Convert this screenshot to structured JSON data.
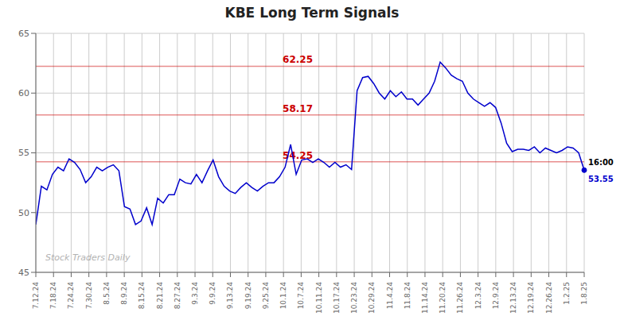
{
  "chart_data": {
    "type": "line",
    "title": "KBE Long Term Signals",
    "watermark": "Stock Traders Daily",
    "color": "#0000cc",
    "grid": true,
    "xlim": [
      0,
      31
    ],
    "xticks": [
      {
        "value": 0,
        "label": "7.12.24"
      },
      {
        "value": 1,
        "label": "7.18.24"
      },
      {
        "value": 2,
        "label": "7.24.24"
      },
      {
        "value": 3,
        "label": "7.30.24"
      },
      {
        "value": 4,
        "label": "8.5.24"
      },
      {
        "value": 5,
        "label": "8.9.24"
      },
      {
        "value": 6,
        "label": "8.15.24"
      },
      {
        "value": 7,
        "label": "8.21.24"
      },
      {
        "value": 8,
        "label": "8.27.24"
      },
      {
        "value": 9,
        "label": "9.3.24"
      },
      {
        "value": 10,
        "label": "9.9.24"
      },
      {
        "value": 11,
        "label": "9.13.24"
      },
      {
        "value": 12,
        "label": "9.19.24"
      },
      {
        "value": 13,
        "label": "9.25.24"
      },
      {
        "value": 14,
        "label": "10.1.24"
      },
      {
        "value": 15,
        "label": "10.7.24"
      },
      {
        "value": 16,
        "label": "10.11.24"
      },
      {
        "value": 17,
        "label": "10.17.24"
      },
      {
        "value": 18,
        "label": "10.23.24"
      },
      {
        "value": 19,
        "label": "10.29.24"
      },
      {
        "value": 20,
        "label": "11.4.24"
      },
      {
        "value": 21,
        "label": "11.8.24"
      },
      {
        "value": 22,
        "label": "11.14.24"
      },
      {
        "value": 23,
        "label": "11.20.24"
      },
      {
        "value": 24,
        "label": "11.26.24"
      },
      {
        "value": 25,
        "label": "12.3.24"
      },
      {
        "value": 26,
        "label": "12.9.24"
      },
      {
        "value": 27,
        "label": "12.13.24"
      },
      {
        "value": 28,
        "label": "12.19.24"
      },
      {
        "value": 29,
        "label": "12.26.24"
      },
      {
        "value": 30,
        "label": "1.2.25"
      },
      {
        "value": 31,
        "label": "1.8.25"
      }
    ],
    "ylim": [
      45,
      65
    ],
    "yticks": [
      45,
      50,
      55,
      60,
      65
    ],
    "hlines": {
      "values": [
        62.25,
        58.17,
        54.25
      ],
      "color": "#cc0000"
    },
    "annotations": [
      "16:00",
      "53.55"
    ],
    "x": [
      0,
      0.313131,
      0.626263,
      0.939394,
      1.252525,
      1.565657,
      1.878788,
      2.191919,
      2.505051,
      2.818182,
      3.131313,
      3.444444,
      3.757576,
      4.070707,
      4.383838,
      4.69697,
      5.010101,
      5.323232,
      5.636364,
      5.949495,
      6.262626,
      6.575758,
      6.888889,
      7.20202,
      7.515152,
      7.828283,
      8.141414,
      8.454545,
      8.767677,
      9.080808,
      9.393939,
      9.707071,
      10.020202,
      10.333333,
      10.646465,
      10.959596,
      11.272727,
      11.585859,
      11.89899,
      12.212121,
      12.525253,
      12.838384,
      13.151515,
      13.464646,
      13.777778,
      14.090909,
      14.40404,
      14.717172,
      15.030303,
      15.343434,
      15.656566,
      15.969697,
      16.282828,
      16.59596,
      16.909091,
      17.222222,
      17.535354,
      17.848485,
      18.161616,
      18.474747,
      18.787879,
      19.10101,
      19.414141,
      19.727273,
      20.040404,
      20.353535,
      20.666667,
      20.979798,
      21.292929,
      21.606061,
      21.919192,
      22.232323,
      22.545455,
      22.858586,
      23.171717,
      23.484848,
      23.79798,
      24.111111,
      24.424242,
      24.737374,
      25.050505,
      25.363636,
      25.676768,
      25.989899,
      26.30303,
      26.616162,
      26.929293,
      27.242424,
      27.555556,
      27.868687,
      28.181818,
      28.494949,
      28.808081,
      29.121212,
      29.434343,
      29.747475,
      30.060606,
      30.373737,
      30.686869,
      31
    ],
    "values": [
      49.0,
      52.2,
      51.9,
      53.2,
      53.8,
      53.5,
      54.5,
      54.2,
      53.6,
      52.5,
      53.0,
      53.8,
      53.5,
      53.8,
      54.0,
      53.5,
      50.5,
      50.3,
      49.0,
      49.3,
      50.4,
      49.0,
      51.2,
      50.8,
      51.5,
      51.5,
      52.8,
      52.5,
      52.4,
      53.2,
      52.5,
      53.5,
      54.4,
      53.0,
      52.2,
      51.8,
      51.6,
      52.1,
      52.5,
      52.1,
      51.8,
      52.2,
      52.5,
      52.5,
      53.0,
      53.8,
      55.7,
      53.2,
      54.4,
      54.5,
      54.2,
      54.5,
      54.2,
      53.8,
      54.2,
      53.8,
      54.0,
      53.6,
      60.2,
      61.3,
      61.4,
      60.8,
      60.0,
      59.5,
      60.2,
      59.7,
      60.1,
      59.5,
      59.5,
      59.0,
      59.5,
      60.0,
      61.0,
      62.6,
      62.1,
      61.5,
      61.2,
      61.0,
      60.0,
      59.5,
      59.2,
      58.9,
      59.2,
      58.8,
      57.5,
      55.8,
      55.1,
      55.3,
      55.3,
      55.2,
      55.5,
      55.0,
      55.4,
      55.2,
      55.0,
      55.2,
      55.5,
      55.4,
      55.0,
      53.55
    ]
  }
}
